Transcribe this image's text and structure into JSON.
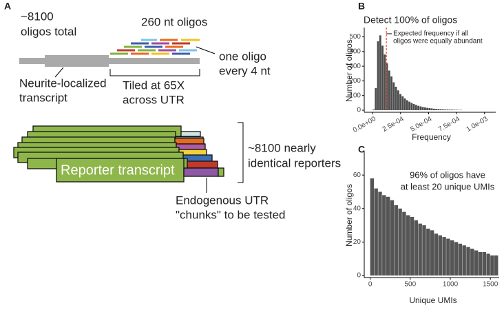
{
  "panel_labels": [
    "A",
    "B",
    "C"
  ],
  "diagram": {
    "oligo_count": [
      "~8100",
      "oligos total"
    ],
    "oligo_length": "260 nt oligos",
    "spacing": [
      "one oligo",
      "every 4 nt"
    ],
    "transcript": [
      "Neurite-localized",
      "transcript"
    ],
    "tiling": [
      "Tiled at 65X",
      "across UTR"
    ],
    "reporter": "Reporter transcript",
    "reporters": [
      "~8100 nearly",
      "identical reporters"
    ],
    "chunks": [
      "Endogenous UTR",
      "\"chunks\" to be tested"
    ]
  },
  "chart_data": [
    {
      "type": "histogram",
      "title": "Detect 100% of oligos",
      "xlabel": "Frequency",
      "ylabel": "Number of oligos",
      "bins": [
        0,
        2e-05,
        4e-05,
        6e-05,
        8e-05,
        0.0001,
        0.00012,
        0.00014,
        0.00016,
        0.00018,
        0.0002,
        0.00022,
        0.00024,
        0.00026,
        0.00028,
        0.0003,
        0.00032,
        0.00034,
        0.00036,
        0.00038,
        0.0004,
        0.00042,
        0.00044,
        0.00046,
        0.00048,
        0.0005,
        0.00052,
        0.00054,
        0.00056,
        0.00058,
        0.0006,
        0.00062,
        0.00064,
        0.00066,
        0.00068,
        0.0007,
        0.00072,
        0.00074,
        0.00076,
        0.00078,
        0.0008
      ],
      "counts": [
        5,
        150,
        470,
        510,
        440,
        380,
        320,
        270,
        230,
        190,
        160,
        135,
        110,
        95,
        80,
        68,
        58,
        50,
        42,
        36,
        30,
        26,
        22,
        19,
        16,
        14,
        12,
        10,
        9,
        8,
        7,
        6,
        5,
        5,
        4,
        4,
        3,
        3,
        2,
        2
      ],
      "color": "#4d4d4d",
      "xlim": [
        -5e-05,
        0.0011
      ],
      "ylim": [
        0,
        540
      ],
      "xticks": [
        {
          "value": 0,
          "label": "0.0e+00"
        },
        {
          "value": 0.00025,
          "label": "2.5e-04"
        },
        {
          "value": 0.0005,
          "label": "5.0e-04"
        },
        {
          "value": 0.00075,
          "label": "7.5e-04"
        },
        {
          "value": 0.001,
          "label": "1.0e-03"
        }
      ],
      "yticks": [
        0,
        100,
        200,
        300,
        400,
        500
      ],
      "reference_line": {
        "x": 0.000123,
        "color": "#e8472b"
      },
      "annotation": [
        "Expected frequency if all",
        "oligos were equally abundant"
      ]
    },
    {
      "type": "histogram",
      "xlabel": "Unique UMIs",
      "ylabel": "Number of oligos",
      "bins": [
        0,
        50,
        100,
        150,
        200,
        250,
        300,
        350,
        400,
        450,
        500,
        550,
        600,
        650,
        700,
        750,
        800,
        850,
        900,
        950,
        1000,
        1050,
        1100,
        1150,
        1200,
        1250,
        1300,
        1350,
        1400,
        1450,
        1500,
        1550,
        1600
      ],
      "counts": [
        58,
        52,
        50,
        48,
        47,
        45,
        42,
        40,
        38,
        36,
        35,
        33,
        31,
        30,
        28,
        27,
        25,
        24,
        23,
        22,
        21,
        20,
        19,
        18,
        17,
        16,
        15,
        14,
        14,
        13,
        12,
        12
      ],
      "color": "#555555",
      "xlim": [
        -40,
        1610
      ],
      "ylim": [
        0,
        72
      ],
      "xticks": [
        0,
        500,
        1000,
        1500
      ],
      "yticks": [
        0,
        20,
        40,
        60
      ],
      "annotation": [
        "96% of oligos have",
        "at least 20 unique UMIs"
      ]
    }
  ]
}
